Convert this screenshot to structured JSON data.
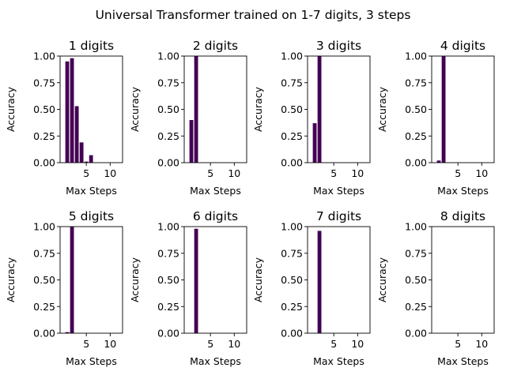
{
  "figure": {
    "suptitle": "Universal Transformer trained on 1-7 digits, 3 steps",
    "bar_color": "#440154"
  },
  "chart_data": [
    {
      "type": "bar",
      "title": "1 digits",
      "xlabel": "Max Steps",
      "ylabel": "Accuracy",
      "x": [
        1,
        2,
        3,
        4,
        5,
        6,
        7,
        8,
        9,
        10,
        11,
        12
      ],
      "values": [
        0.95,
        0.98,
        0.53,
        0.19,
        0.01,
        0.07,
        0,
        0,
        0,
        0,
        0,
        0
      ],
      "xlim": [
        -0.5,
        12.6
      ],
      "ylim": [
        0,
        1
      ],
      "xticks": [
        5,
        10
      ],
      "yticks": [
        0,
        0.25,
        0.5,
        0.75,
        1.0
      ],
      "ytick_labels": [
        "0.00",
        "0.25",
        "0.50",
        "0.75",
        "1.00"
      ]
    },
    {
      "type": "bar",
      "title": "2 digits",
      "xlabel": "Max Steps",
      "ylabel": "Accuracy",
      "x": [
        1,
        2,
        3,
        4,
        5,
        6,
        7,
        8,
        9,
        10,
        11,
        12
      ],
      "values": [
        0.4,
        1.0,
        0,
        0,
        0,
        0,
        0,
        0,
        0,
        0,
        0,
        0
      ],
      "xlim": [
        -0.5,
        12.6
      ],
      "ylim": [
        0,
        1
      ],
      "xticks": [
        5,
        10
      ],
      "yticks": [
        0,
        0.25,
        0.5,
        0.75,
        1.0
      ],
      "ytick_labels": [
        "0.00",
        "0.25",
        "0.50",
        "0.75",
        "1.00"
      ]
    },
    {
      "type": "bar",
      "title": "3 digits",
      "xlabel": "Max Steps",
      "ylabel": "Accuracy",
      "x": [
        1,
        2,
        3,
        4,
        5,
        6,
        7,
        8,
        9,
        10,
        11,
        12
      ],
      "values": [
        0.37,
        1.0,
        0,
        0,
        0,
        0,
        0,
        0,
        0,
        0,
        0,
        0
      ],
      "xlim": [
        -0.5,
        12.6
      ],
      "ylim": [
        0,
        1
      ],
      "xticks": [
        5,
        10
      ],
      "yticks": [
        0,
        0.25,
        0.5,
        0.75,
        1.0
      ],
      "ytick_labels": [
        "0.00",
        "0.25",
        "0.50",
        "0.75",
        "1.00"
      ]
    },
    {
      "type": "bar",
      "title": "4 digits",
      "xlabel": "Max Steps",
      "ylabel": "Accuracy",
      "x": [
        1,
        2,
        3,
        4,
        5,
        6,
        7,
        8,
        9,
        10,
        11,
        12
      ],
      "values": [
        0.02,
        1.0,
        0,
        0,
        0,
        0,
        0,
        0,
        0,
        0,
        0,
        0
      ],
      "xlim": [
        -0.5,
        12.6
      ],
      "ylim": [
        0,
        1
      ],
      "xticks": [
        5,
        10
      ],
      "yticks": [
        0,
        0.25,
        0.5,
        0.75,
        1.0
      ],
      "ytick_labels": [
        "0.00",
        "0.25",
        "0.50",
        "0.75",
        "1.00"
      ]
    },
    {
      "type": "bar",
      "title": "5 digits",
      "xlabel": "Max Steps",
      "ylabel": "Accuracy",
      "x": [
        1,
        2,
        3,
        4,
        5,
        6,
        7,
        8,
        9,
        10,
        11,
        12
      ],
      "values": [
        0.01,
        1.0,
        0,
        0,
        0,
        0,
        0,
        0,
        0,
        0,
        0,
        0
      ],
      "xlim": [
        -0.5,
        12.6
      ],
      "ylim": [
        0,
        1
      ],
      "xticks": [
        5,
        10
      ],
      "yticks": [
        0,
        0.25,
        0.5,
        0.75,
        1.0
      ],
      "ytick_labels": [
        "0.00",
        "0.25",
        "0.50",
        "0.75",
        "1.00"
      ]
    },
    {
      "type": "bar",
      "title": "6 digits",
      "xlabel": "Max Steps",
      "ylabel": "Accuracy",
      "x": [
        1,
        2,
        3,
        4,
        5,
        6,
        7,
        8,
        9,
        10,
        11,
        12
      ],
      "values": [
        0,
        0.98,
        0,
        0,
        0,
        0,
        0,
        0,
        0,
        0,
        0,
        0
      ],
      "xlim": [
        -0.5,
        12.6
      ],
      "ylim": [
        0,
        1
      ],
      "xticks": [
        5,
        10
      ],
      "yticks": [
        0,
        0.25,
        0.5,
        0.75,
        1.0
      ],
      "ytick_labels": [
        "0.00",
        "0.25",
        "0.50",
        "0.75",
        "1.00"
      ]
    },
    {
      "type": "bar",
      "title": "7 digits",
      "xlabel": "Max Steps",
      "ylabel": "Accuracy",
      "x": [
        1,
        2,
        3,
        4,
        5,
        6,
        7,
        8,
        9,
        10,
        11,
        12
      ],
      "values": [
        0,
        0.96,
        0,
        0,
        0,
        0,
        0,
        0,
        0,
        0,
        0,
        0
      ],
      "xlim": [
        -0.5,
        12.6
      ],
      "ylim": [
        0,
        1
      ],
      "xticks": [
        5,
        10
      ],
      "yticks": [
        0,
        0.25,
        0.5,
        0.75,
        1.0
      ],
      "ytick_labels": [
        "0.00",
        "0.25",
        "0.50",
        "0.75",
        "1.00"
      ]
    },
    {
      "type": "bar",
      "title": "8 digits",
      "xlabel": "Max Steps",
      "ylabel": "Accuracy",
      "x": [
        1,
        2,
        3,
        4,
        5,
        6,
        7,
        8,
        9,
        10,
        11,
        12
      ],
      "values": [
        0,
        0,
        0,
        0,
        0,
        0,
        0,
        0,
        0,
        0,
        0,
        0
      ],
      "xlim": [
        -0.5,
        12.6
      ],
      "ylim": [
        0,
        1
      ],
      "xticks": [
        5,
        10
      ],
      "yticks": [
        0,
        0.25,
        0.5,
        0.75,
        1.0
      ],
      "ytick_labels": [
        "0.00",
        "0.25",
        "0.50",
        "0.75",
        "1.00"
      ]
    }
  ]
}
